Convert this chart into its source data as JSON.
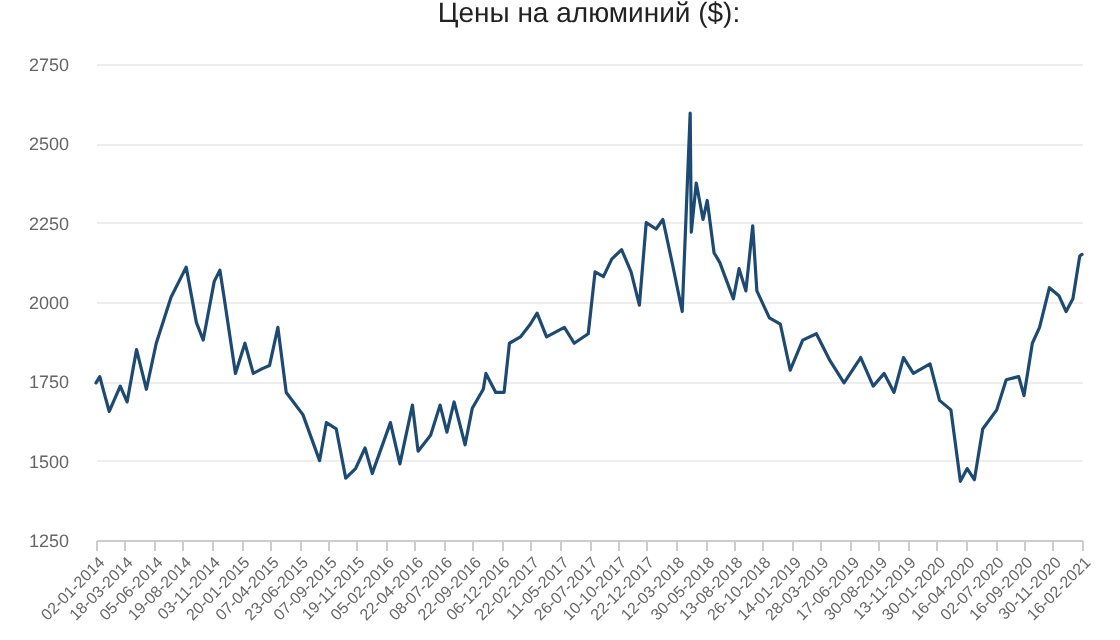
{
  "chart_data": {
    "type": "line",
    "title": "Цены на алюминий ($):",
    "x": [
      "2014-01-02",
      "2014-01-12",
      "2014-01-23",
      "2014-02-06",
      "2014-03-07",
      "2014-03-25",
      "2014-04-19",
      "2014-05-15",
      "2014-06-10",
      "2014-07-19",
      "2014-08-28",
      "2014-09-24",
      "2014-10-12",
      "2014-11-10",
      "2014-11-25",
      "2014-12-06",
      "2015-01-05",
      "2015-01-30",
      "2015-02-21",
      "2015-03-17",
      "2015-04-05",
      "2015-04-27",
      "2015-05-19",
      "2015-07-02",
      "2015-08-15",
      "2015-09-02",
      "2015-09-28",
      "2015-10-23",
      "2015-11-18",
      "2015-12-13",
      "2016-01-01",
      "2016-02-18",
      "2016-03-14",
      "2016-04-16",
      "2016-05-01",
      "2016-06-03",
      "2016-06-28",
      "2016-07-16",
      "2016-08-04",
      "2016-09-02",
      "2016-09-21",
      "2016-10-20",
      "2016-10-27",
      "2016-11-22",
      "2016-12-14",
      "2016-12-28",
      "2017-01-26",
      "2017-02-21",
      "2017-03-11",
      "2017-04-05",
      "2017-05-22",
      "2017-06-17",
      "2017-07-24",
      "2017-08-11",
      "2017-09-02",
      "2017-09-24",
      "2017-10-20",
      "2017-11-14",
      "2017-12-06",
      "2017-12-24",
      "2018-01-19",
      "2018-02-06",
      "2018-03-04",
      "2018-03-29",
      "2018-04-19",
      "2018-04-22",
      "2018-05-05",
      "2018-05-23",
      "2018-06-03",
      "2018-06-21",
      "2018-07-06",
      "2018-08-11",
      "2018-08-26",
      "2018-09-13",
      "2018-10-01",
      "2018-10-12",
      "2018-11-14",
      "2018-12-13",
      "2019-01-08",
      "2019-02-10",
      "2019-03-18",
      "2019-04-23",
      "2019-05-30",
      "2019-07-13",
      "2019-08-15",
      "2019-09-13",
      "2019-10-09",
      "2019-11-03",
      "2019-11-29",
      "2020-01-12",
      "2020-02-06",
      "2020-03-07",
      "2020-04-01",
      "2020-04-19",
      "2020-05-08",
      "2020-05-30",
      "2020-07-06",
      "2020-07-31",
      "2020-09-02",
      "2020-09-16",
      "2020-10-08",
      "2020-10-27",
      "2020-11-22",
      "2020-12-17",
      "2021-01-05",
      "2021-01-23",
      "2021-02-10",
      "2021-02-16"
    ],
    "series": [
      {
        "color": "#1d4a73",
        "values": [
          1745,
          1765,
          1715,
          1655,
          1735,
          1685,
          1850,
          1725,
          1870,
          2015,
          2110,
          1935,
          1880,
          2065,
          2100,
          2015,
          1775,
          1870,
          1775,
          1790,
          1800,
          1920,
          1715,
          1645,
          1500,
          1620,
          1600,
          1445,
          1475,
          1540,
          1460,
          1620,
          1490,
          1675,
          1530,
          1580,
          1675,
          1590,
          1685,
          1550,
          1665,
          1725,
          1775,
          1715,
          1715,
          1870,
          1890,
          1930,
          1965,
          1890,
          1920,
          1870,
          1900,
          2095,
          2080,
          2135,
          2165,
          2095,
          1990,
          2250,
          2230,
          2260,
          2115,
          1970,
          2595,
          2220,
          2375,
          2260,
          2320,
          2155,
          2125,
          2010,
          2105,
          2035,
          2240,
          2035,
          1950,
          1930,
          1785,
          1880,
          1900,
          1815,
          1745,
          1825,
          1735,
          1775,
          1715,
          1825,
          1775,
          1805,
          1690,
          1660,
          1435,
          1475,
          1440,
          1600,
          1660,
          1755,
          1765,
          1705,
          1870,
          1920,
          2045,
          2020,
          1970,
          2010,
          2145,
          2150
        ]
      }
    ],
    "xlim": [
      "2014-01-02",
      "2021-02-16"
    ],
    "xticks": [
      {
        "value": "2014-01-02",
        "label": "02-01-2014"
      },
      {
        "value": "2014-03-18",
        "label": "18-03-2014"
      },
      {
        "value": "2014-06-05",
        "label": "05-06-2014"
      },
      {
        "value": "2014-08-19",
        "label": "19-08-2014"
      },
      {
        "value": "2014-11-03",
        "label": "03-11-2014"
      },
      {
        "value": "2015-01-20",
        "label": "20-01-2015"
      },
      {
        "value": "2015-04-07",
        "label": "07-04-2015"
      },
      {
        "value": "2015-06-23",
        "label": "23-06-2015"
      },
      {
        "value": "2015-09-07",
        "label": "07-09-2015"
      },
      {
        "value": "2015-11-19",
        "label": "19-11-2015"
      },
      {
        "value": "2016-02-05",
        "label": "05-02-2016"
      },
      {
        "value": "2016-04-22",
        "label": "22-04-2016"
      },
      {
        "value": "2016-07-08",
        "label": "08-07-2016"
      },
      {
        "value": "2016-09-22",
        "label": "22-09-2016"
      },
      {
        "value": "2016-12-06",
        "label": "06-12-2016"
      },
      {
        "value": "2017-02-22",
        "label": "22-02-2017"
      },
      {
        "value": "2017-05-11",
        "label": "11-05-2017"
      },
      {
        "value": "2017-07-26",
        "label": "26-07-2017"
      },
      {
        "value": "2017-10-10",
        "label": "10-10-2017"
      },
      {
        "value": "2017-12-22",
        "label": "22-12-2017"
      },
      {
        "value": "2018-03-12",
        "label": "12-03-2018"
      },
      {
        "value": "2018-05-30",
        "label": "30-05-2018"
      },
      {
        "value": "2018-08-13",
        "label": "13-08-2018"
      },
      {
        "value": "2018-10-26",
        "label": "26-10-2018"
      },
      {
        "value": "2019-01-14",
        "label": "14-01-2019"
      },
      {
        "value": "2019-03-28",
        "label": "28-03-2019"
      },
      {
        "value": "2019-06-17",
        "label": "17-06-2019"
      },
      {
        "value": "2019-08-30",
        "label": "30-08-2019"
      },
      {
        "value": "2019-11-13",
        "label": "13-11-2019"
      },
      {
        "value": "2020-01-30",
        "label": "30-01-2020"
      },
      {
        "value": "2020-04-16",
        "label": "16-04-2020"
      },
      {
        "value": "2020-07-02",
        "label": "02-07-2020"
      },
      {
        "value": "2020-09-16",
        "label": "16-09-2020"
      },
      {
        "value": "2020-11-30",
        "label": "30-11-2020"
      },
      {
        "value": "2021-02-16",
        "label": "16-02-2021"
      }
    ],
    "ylim": [
      1250,
      2750
    ],
    "yticks": [
      1250,
      1500,
      1750,
      2000,
      2250,
      2500,
      2750
    ],
    "grid": "y",
    "legend": false,
    "marker": "none",
    "line_style": "solid"
  }
}
